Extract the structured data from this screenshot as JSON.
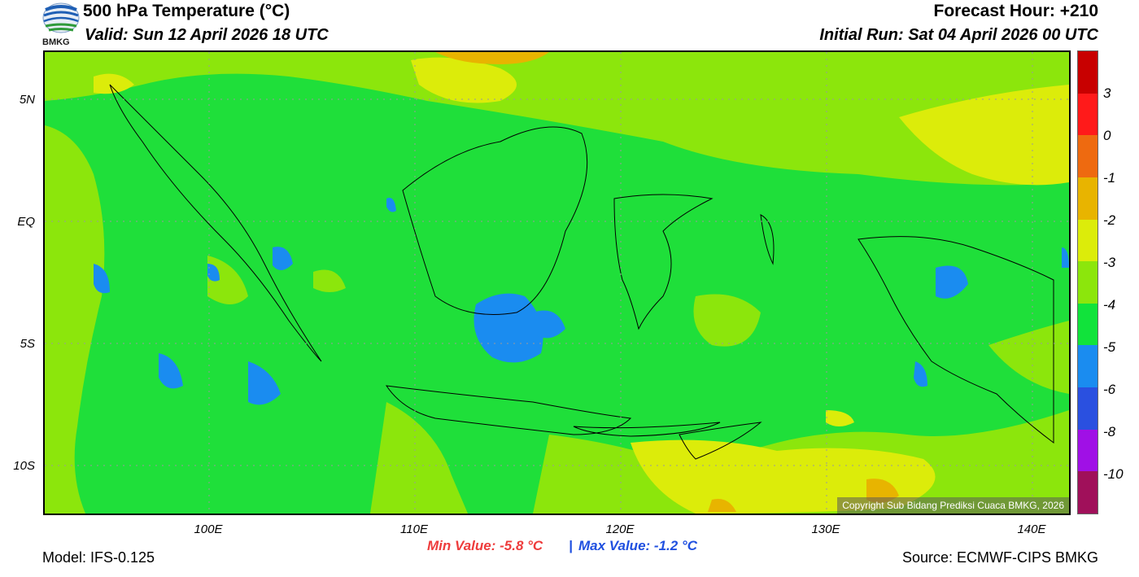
{
  "header": {
    "title": "500 hPa Temperature (°C)",
    "valid": "Valid: Sun 12 April 2026 18 UTC",
    "forecast_hour": "Forecast Hour: +210",
    "initial_run": "Initial Run: Sat 04 April 2026 00 UTC",
    "logo_text": "BMKG"
  },
  "map": {
    "lat_labels": [
      "5N",
      "EQ",
      "5S",
      "10S"
    ],
    "lon_labels": [
      "100E",
      "110E",
      "120E",
      "130E",
      "140E"
    ],
    "copyright": "Copyright Sub Bidang Prediksi Cuaca BMKG, 2026"
  },
  "colorbar": {
    "labels": [
      "3",
      "0",
      "-1",
      "-2",
      "-3",
      "-4",
      "-5",
      "-6",
      "-8",
      "-10"
    ],
    "colors": [
      "#c80000",
      "#ff1a1a",
      "#ee6a10",
      "#e8b400",
      "#dcec0a",
      "#8ce60c",
      "#11e33b",
      "#1a8cf0",
      "#2a50e0",
      "#a010e6",
      "#a0105a"
    ]
  },
  "footer": {
    "model": "Model: IFS-0.125",
    "min_value": "Min Value: -5.8 °C",
    "separator": "|",
    "max_value": "Max Value: -1.2 °C",
    "source": "Source: ECMWF-CIPS BMKG"
  }
}
